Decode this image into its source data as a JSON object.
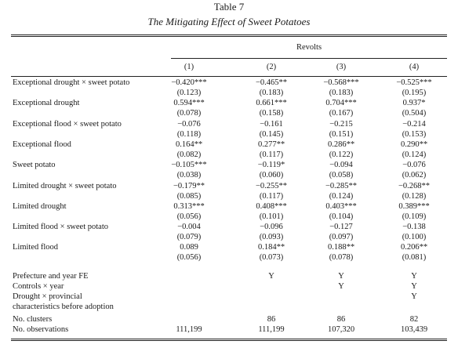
{
  "table": {
    "number": "Table 7",
    "title": "The Mitigating Effect of Sweet Potatoes",
    "dep_var": "Revolts",
    "columns": [
      "(1)",
      "(2)",
      "(3)",
      "(4)"
    ],
    "coef_rows": [
      {
        "label": "Exceptional drought × sweet potato",
        "coef": [
          "−0.420***",
          "−0.465**",
          "−0.568***",
          "−0.525***"
        ],
        "se": [
          "(0.123)",
          "(0.183)",
          "(0.183)",
          "(0.195)"
        ]
      },
      {
        "label": "Exceptional drought",
        "coef": [
          "0.594***",
          "0.661***",
          "0.704***",
          "0.937*"
        ],
        "se": [
          "(0.078)",
          "(0.158)",
          "(0.167)",
          "(0.504)"
        ]
      },
      {
        "label": "Exceptional flood × sweet potato",
        "coef": [
          "−0.076",
          "−0.161",
          "−0.215",
          "−0.214"
        ],
        "se": [
          "(0.118)",
          "(0.145)",
          "(0.151)",
          "(0.153)"
        ]
      },
      {
        "label": "Exceptional flood",
        "coef": [
          "0.164**",
          "0.277**",
          "0.286**",
          "0.290**"
        ],
        "se": [
          "(0.082)",
          "(0.117)",
          "(0.122)",
          "(0.124)"
        ]
      },
      {
        "label": "Sweet potato",
        "coef": [
          "−0.105***",
          "−0.119*",
          "−0.094",
          "−0.076"
        ],
        "se": [
          "(0.038)",
          "(0.060)",
          "(0.058)",
          "(0.062)"
        ]
      },
      {
        "label": "Limited drought × sweet potato",
        "coef": [
          "−0.179**",
          "−0.255**",
          "−0.285**",
          "−0.268**"
        ],
        "se": [
          "(0.085)",
          "(0.117)",
          "(0.124)",
          "(0.128)"
        ]
      },
      {
        "label": "Limited drought",
        "coef": [
          "0.313***",
          "0.408***",
          "0.403***",
          "0.389***"
        ],
        "se": [
          "(0.056)",
          "(0.101)",
          "(0.104)",
          "(0.109)"
        ]
      },
      {
        "label": "Limited flood × sweet potato",
        "coef": [
          "−0.004",
          "−0.096",
          "−0.127",
          "−0.138"
        ],
        "se": [
          "(0.079)",
          "(0.093)",
          "(0.097)",
          "(0.100)"
        ]
      },
      {
        "label": "Limited flood",
        "coef": [
          "0.089",
          "0.184**",
          "0.188**",
          "0.206**"
        ],
        "se": [
          "(0.056)",
          "(0.073)",
          "(0.078)",
          "(0.081)"
        ]
      }
    ],
    "controls": [
      {
        "label": "Prefecture and year FE",
        "values": [
          "",
          "Y",
          "Y",
          "Y"
        ]
      },
      {
        "label": "Controls × year",
        "values": [
          "",
          "",
          "Y",
          "Y"
        ]
      },
      {
        "label": "Drought × provincial",
        "values": [
          "",
          "",
          "",
          "Y"
        ]
      },
      {
        "label": "characteristics before adoption",
        "values": [
          "",
          "",
          "",
          ""
        ]
      },
      {
        "label": "No. clusters",
        "values": [
          "",
          "86",
          "86",
          "82"
        ]
      },
      {
        "label": "No. observations",
        "values": [
          "111,199",
          "111,199",
          "107,320",
          "103,439"
        ]
      }
    ]
  }
}
